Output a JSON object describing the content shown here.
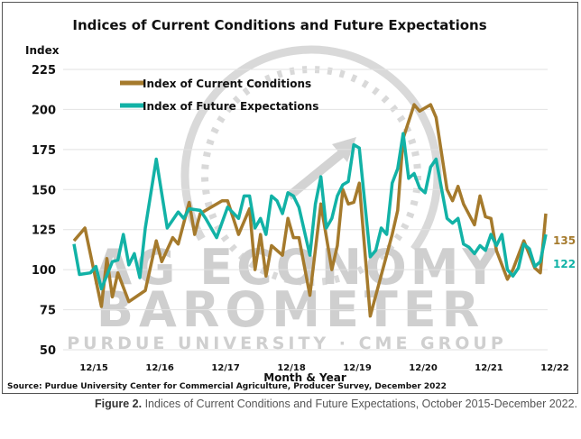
{
  "chart_data": {
    "type": "line",
    "title": "Indices of Current Conditions and Future Expectations",
    "ylabel": "Index",
    "xlabel": "Month & Year",
    "ylim": [
      50,
      225
    ],
    "yticks": [
      50,
      75,
      100,
      125,
      150,
      175,
      200,
      225
    ],
    "x_unit": "months since 10/2015",
    "xlim": [
      0,
      86
    ],
    "xticks": [
      {
        "label": "12/15",
        "x": 2
      },
      {
        "label": "12/16",
        "x": 14
      },
      {
        "label": "12/17",
        "x": 26
      },
      {
        "label": "12/18",
        "x": 38
      },
      {
        "label": "12/19",
        "x": 50
      },
      {
        "label": "12/20",
        "x": 62
      },
      {
        "label": "12/21",
        "x": 74
      },
      {
        "label": "12/22",
        "x": 86
      }
    ],
    "grid": true,
    "legend_position": "top-left",
    "series": [
      {
        "name": "Index of Current Conditions",
        "color": "#A57A2C",
        "end_label": "135",
        "points": [
          [
            0,
            118
          ],
          [
            2,
            126
          ],
          [
            5,
            77
          ],
          [
            6,
            107
          ],
          [
            7,
            83
          ],
          [
            8,
            98
          ],
          [
            10,
            80
          ],
          [
            13,
            87
          ],
          [
            15,
            118
          ],
          [
            16,
            105
          ],
          [
            18,
            120
          ],
          [
            19,
            116
          ],
          [
            21,
            142
          ],
          [
            22,
            122
          ],
          [
            23,
            135
          ],
          [
            27,
            143
          ],
          [
            28,
            143
          ],
          [
            30,
            122
          ],
          [
            32,
            138
          ],
          [
            33,
            100
          ],
          [
            34,
            122
          ],
          [
            35,
            96
          ],
          [
            36,
            115
          ],
          [
            38,
            109
          ],
          [
            39,
            132
          ],
          [
            40,
            120
          ],
          [
            41,
            120
          ],
          [
            43,
            84
          ],
          [
            45,
            141
          ],
          [
            47,
            100
          ],
          [
            48,
            115
          ],
          [
            49,
            150
          ],
          [
            50,
            141
          ],
          [
            51,
            142
          ],
          [
            52,
            154
          ],
          [
            54,
            71
          ],
          [
            58,
            122
          ],
          [
            59,
            137
          ],
          [
            60,
            182
          ],
          [
            62,
            203
          ],
          [
            63,
            199
          ],
          [
            65,
            203
          ],
          [
            66,
            195
          ],
          [
            68,
            150
          ],
          [
            69,
            143
          ],
          [
            70,
            152
          ],
          [
            71,
            141
          ],
          [
            73,
            128
          ],
          [
            74,
            146
          ],
          [
            75,
            133
          ],
          [
            76,
            132
          ],
          [
            77,
            112
          ],
          [
            79,
            94
          ],
          [
            80,
            100
          ],
          [
            82,
            118
          ],
          [
            84,
            101
          ],
          [
            85,
            98
          ],
          [
            86,
            135
          ]
        ]
      },
      {
        "name": "Index of Future Expectations",
        "color": "#12B2A6",
        "end_label": "122",
        "points": [
          [
            0,
            116
          ],
          [
            1,
            97
          ],
          [
            3,
            98
          ],
          [
            4,
            102
          ],
          [
            5,
            88
          ],
          [
            7,
            105
          ],
          [
            8,
            106
          ],
          [
            9,
            122
          ],
          [
            10,
            103
          ],
          [
            11,
            110
          ],
          [
            12,
            95
          ],
          [
            13,
            126
          ],
          [
            15,
            169
          ],
          [
            17,
            126
          ],
          [
            19,
            136
          ],
          [
            20,
            132
          ],
          [
            21,
            138
          ],
          [
            23,
            137
          ],
          [
            24,
            132
          ],
          [
            26,
            120
          ],
          [
            28,
            139
          ],
          [
            30,
            132
          ],
          [
            31,
            146
          ],
          [
            32,
            146
          ],
          [
            33,
            126
          ],
          [
            34,
            132
          ],
          [
            35,
            122
          ],
          [
            36,
            146
          ],
          [
            37,
            143
          ],
          [
            38,
            135
          ],
          [
            39,
            148
          ],
          [
            40,
            146
          ],
          [
            41,
            139
          ],
          [
            43,
            109
          ],
          [
            44,
            141
          ],
          [
            45,
            158
          ],
          [
            46,
            126
          ],
          [
            47,
            132
          ],
          [
            48,
            146
          ],
          [
            49,
            153
          ],
          [
            50,
            155
          ],
          [
            51,
            178
          ],
          [
            52,
            176
          ],
          [
            54,
            108
          ],
          [
            55,
            112
          ],
          [
            56,
            126
          ],
          [
            57,
            122
          ],
          [
            58,
            154
          ],
          [
            59,
            163
          ],
          [
            60,
            185
          ],
          [
            61,
            157
          ],
          [
            62,
            160
          ],
          [
            63,
            151
          ],
          [
            64,
            148
          ],
          [
            65,
            164
          ],
          [
            66,
            169
          ],
          [
            68,
            132
          ],
          [
            69,
            129
          ],
          [
            70,
            132
          ],
          [
            71,
            116
          ],
          [
            72,
            114
          ],
          [
            73,
            110
          ],
          [
            74,
            115
          ],
          [
            75,
            112
          ],
          [
            76,
            122
          ],
          [
            77,
            115
          ],
          [
            78,
            122
          ],
          [
            79,
            100
          ],
          [
            80,
            96
          ],
          [
            81,
            101
          ],
          [
            82,
            116
          ],
          [
            83,
            113
          ],
          [
            84,
            102
          ],
          [
            85,
            105
          ],
          [
            86,
            122
          ]
        ]
      }
    ],
    "source": "Source: Purdue University Center for Commercial Agriculture, Producer Survey, December 2022",
    "watermark": {
      "line1": "AG ECONOMY",
      "line2": "BAROMETER",
      "line3": "PURDUE UNIVERSITY · CME GROUP"
    }
  },
  "caption": {
    "label": "Figure 2.",
    "text": " Indices of Current Conditions and Future Expectations, October 2015-December 2022."
  }
}
